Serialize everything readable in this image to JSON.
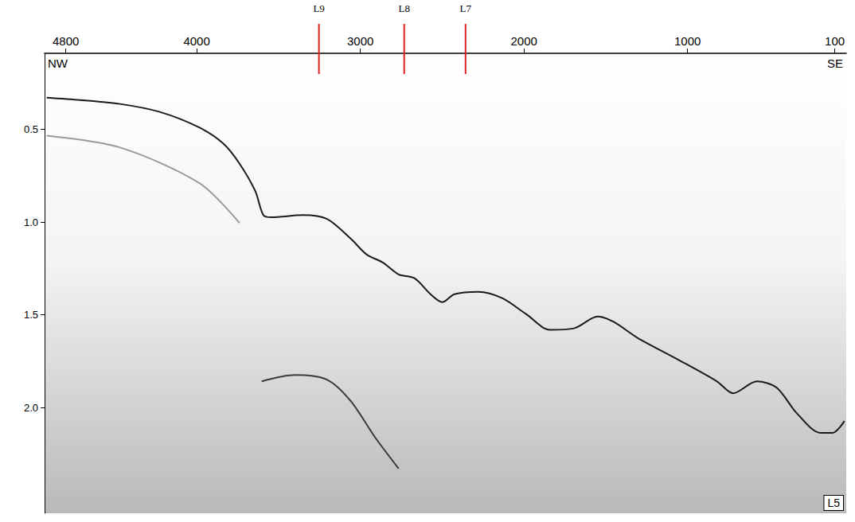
{
  "chart_data": {
    "type": "line",
    "xlim": [
      4930,
      30
    ],
    "ylim": [
      2.57,
      0.09
    ],
    "xticks": [
      4800,
      4000,
      3000,
      2000,
      1000,
      100
    ],
    "yticks": [
      0.5,
      {
        "value": 1,
        "label": "1.0"
      },
      1.5,
      {
        "value": 2,
        "label": "2.0"
      }
    ],
    "grid": false,
    "corner_labels": {
      "top_left": "NW",
      "top_right": "SE",
      "bottom_right": "L5"
    },
    "markers": {
      "color": "#e02020",
      "items": [
        {
          "x": 3253,
          "label": "L9"
        },
        {
          "x": 2732,
          "label": "L8"
        },
        {
          "x": 2357,
          "label": "L7"
        }
      ]
    },
    "series": [
      {
        "color": "#1a1a1a",
        "line_style": "solid",
        "values": [
          [
            4917,
            0.329
          ],
          [
            4712,
            0.342
          ],
          [
            4469,
            0.363
          ],
          [
            4226,
            0.406
          ],
          [
            3982,
            0.491
          ],
          [
            3837,
            0.577
          ],
          [
            3739,
            0.684
          ],
          [
            3642,
            0.833
          ],
          [
            3593,
            0.962
          ],
          [
            3545,
            0.974
          ],
          [
            3350,
            0.962
          ],
          [
            3204,
            0.983
          ],
          [
            3058,
            1.09
          ],
          [
            2961,
            1.175
          ],
          [
            2863,
            1.218
          ],
          [
            2766,
            1.282
          ],
          [
            2669,
            1.303
          ],
          [
            2571,
            1.389
          ],
          [
            2498,
            1.432
          ],
          [
            2425,
            1.389
          ],
          [
            2279,
            1.376
          ],
          [
            2133,
            1.41
          ],
          [
            1987,
            1.496
          ],
          [
            1841,
            1.581
          ],
          [
            1694,
            1.573
          ],
          [
            1549,
            1.509
          ],
          [
            1452,
            1.538
          ],
          [
            1306,
            1.624
          ],
          [
            1063,
            1.739
          ],
          [
            820,
            1.859
          ],
          [
            722,
            1.923
          ],
          [
            576,
            1.859
          ],
          [
            455,
            1.893
          ],
          [
            333,
            2.03
          ],
          [
            187,
            2.137
          ],
          [
            114,
            2.137
          ],
          [
            41,
            2.073
          ]
        ]
      },
      {
        "color": "#3a3a3a",
        "line_style": "solid",
        "values": [
          [
            3603,
            1.859
          ],
          [
            3399,
            1.825
          ],
          [
            3204,
            1.85
          ],
          [
            3058,
            1.966
          ],
          [
            2912,
            2.158
          ],
          [
            2766,
            2.329
          ]
        ]
      },
      {
        "color": "#9a9a9a",
        "line_style": "solid",
        "values": [
          [
            4917,
            0.534
          ],
          [
            4469,
            0.598
          ],
          [
            3982,
            0.791
          ],
          [
            3739,
            1.004
          ]
        ]
      }
    ]
  }
}
